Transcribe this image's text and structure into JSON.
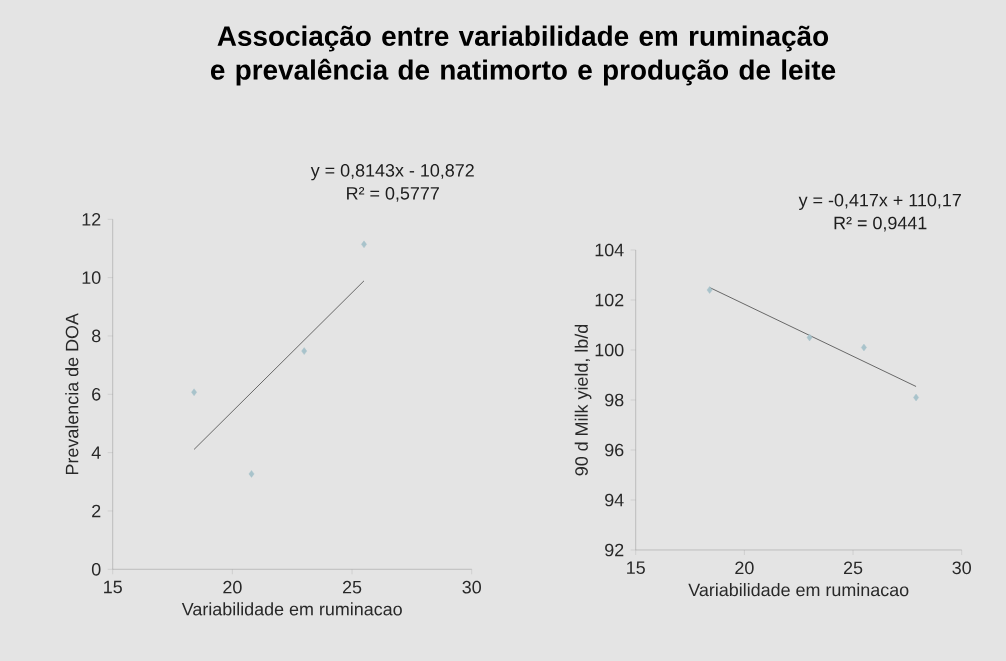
{
  "chart_data": [
    {
      "type": "scatter",
      "title": "Associação entre variabilidade em ruminação e prevalência de natimorto e produção de leite",
      "xlabel": "Variabilidade em ruminacao",
      "ylabel": "Prevalencia de DOA",
      "xlim": [
        15,
        30
      ],
      "xticks": [
        15,
        20,
        25,
        30
      ],
      "ylim": [
        0,
        12
      ],
      "yticks": [
        0,
        2,
        4,
        6,
        8,
        10,
        12
      ],
      "marker": "diamond",
      "series": [
        {
          "color": "#a8c3cb",
          "x": [
            18.4,
            20.8,
            23.0,
            25.5
          ],
          "values": [
            6.07,
            3.27,
            7.48,
            11.14
          ]
        },
        {
          "type": "line",
          "color": "#595959",
          "marker": "none",
          "x": [
            18.4,
            25.5
          ],
          "values": [
            4.11,
            9.89
          ]
        }
      ],
      "annotations": [
        "y = 0,8143x - 10,872",
        "R² = 0,5777"
      ]
    },
    {
      "type": "scatter",
      "xlabel": "Variabilidade em ruminacao",
      "ylabel": "90 d Milk yield, lb/d",
      "xlim": [
        15,
        30
      ],
      "xticks": [
        15,
        20,
        25,
        30
      ],
      "ylim": [
        92,
        104
      ],
      "yticks": [
        92,
        94,
        96,
        98,
        100,
        102,
        104
      ],
      "marker": "diamond",
      "series": [
        {
          "color": "#a8c3cb",
          "x": [
            18.4,
            23.0,
            25.5,
            27.9
          ],
          "values": [
            102.4,
            100.5,
            100.1,
            98.1
          ]
        },
        {
          "type": "line",
          "color": "#595959",
          "marker": "none",
          "x": [
            18.4,
            27.9
          ],
          "values": [
            102.5,
            98.54
          ]
        }
      ],
      "annotations": [
        "y = -0,417x + 110,17",
        "R² = 0,9441"
      ]
    }
  ]
}
